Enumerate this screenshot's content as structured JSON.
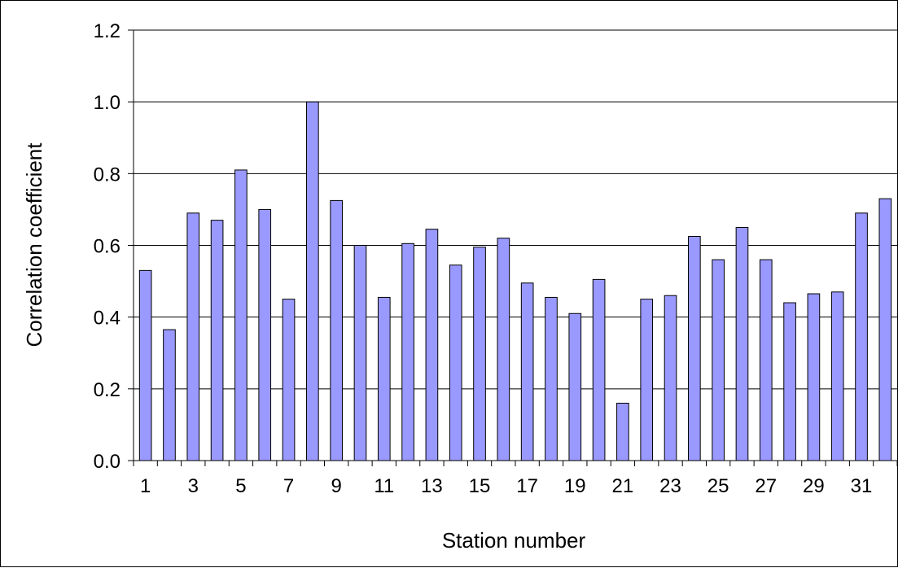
{
  "chart_data": {
    "type": "bar",
    "title": "",
    "xlabel": "Station number",
    "ylabel": "Correlation coefficient",
    "ylim": [
      0,
      1.2
    ],
    "yticks": [
      "0.0",
      "0.2",
      "0.4",
      "0.6",
      "0.8",
      "1.0",
      "1.2"
    ],
    "xtick_labels": [
      "1",
      "3",
      "5",
      "7",
      "9",
      "11",
      "13",
      "15",
      "17",
      "19",
      "21",
      "23",
      "25",
      "27",
      "29",
      "31"
    ],
    "categories": [
      "1",
      "2",
      "3",
      "4",
      "5",
      "6",
      "7",
      "8",
      "9",
      "10",
      "11",
      "12",
      "13",
      "14",
      "15",
      "16",
      "17",
      "18",
      "19",
      "20",
      "21",
      "22",
      "23",
      "24",
      "25",
      "26",
      "27",
      "28",
      "29",
      "30",
      "31",
      "32"
    ],
    "values": [
      0.53,
      0.365,
      0.69,
      0.67,
      0.81,
      0.7,
      0.45,
      1.0,
      0.725,
      0.6,
      0.455,
      0.605,
      0.645,
      0.545,
      0.595,
      0.62,
      0.495,
      0.455,
      0.41,
      0.505,
      0.16,
      0.45,
      0.46,
      0.625,
      0.56,
      0.65,
      0.56,
      0.44,
      0.465,
      0.47,
      0.69,
      0.73
    ],
    "grid": true,
    "legend": "none",
    "colors": {
      "bar_fill": "#9999FF",
      "bar_stroke": "#000000",
      "grid": "#000000"
    }
  }
}
